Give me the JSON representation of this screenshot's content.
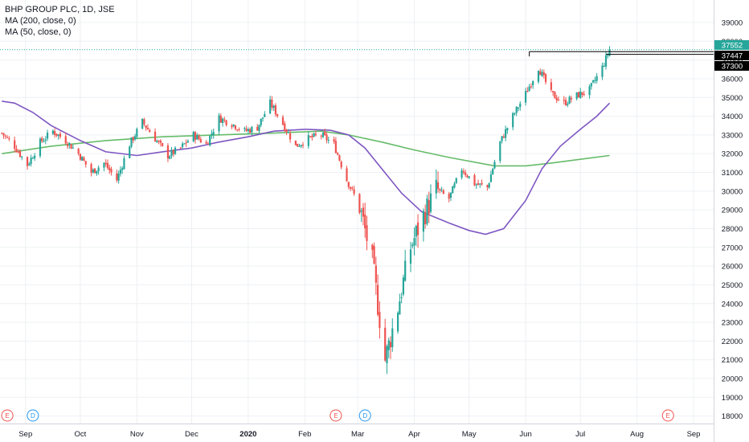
{
  "header": {
    "title": "BHP GROUP PLC, 1D, JSE",
    "indicators": [
      "MA (200, close, 0)",
      "MA (50, close, 0)"
    ]
  },
  "colors": {
    "up": "#26a69a",
    "down": "#ef5350",
    "ma200": "#66bb6a",
    "ma50": "#7e57c2",
    "grid": "#eef0f3",
    "last_price_bg": "#26a69a",
    "label_bg": "#000000",
    "earnings": "#ef5350",
    "dividend": "#2196f3"
  },
  "price_labels": [
    {
      "name": "last-price",
      "text": "37552",
      "value": 37552
    },
    {
      "name": "level-high",
      "text": "37447",
      "value": 37447
    },
    {
      "name": "level-low",
      "text": "37300",
      "value": 37300
    }
  ],
  "events": [
    {
      "type": "earnings",
      "letter": "E",
      "date": "2019-08-22"
    },
    {
      "type": "dividend",
      "letter": "D",
      "date": "2019-09-05"
    },
    {
      "type": "earnings",
      "letter": "E",
      "date": "2020-02-18"
    },
    {
      "type": "dividend",
      "letter": "D",
      "date": "2020-03-05"
    },
    {
      "type": "earnings",
      "letter": "E",
      "date": "2020-08-18"
    }
  ],
  "chart_data": {
    "type": "candlestick",
    "title": "BHP GROUP PLC, 1D, JSE",
    "xlabel": "",
    "ylabel": "",
    "ylim": [
      17600,
      39600
    ],
    "xlim": [
      "2019-08-18",
      "2020-09-12"
    ],
    "y_ticks": [
      18000,
      19000,
      20000,
      21000,
      22000,
      23000,
      24000,
      25000,
      26000,
      27000,
      28000,
      29000,
      30000,
      31000,
      32000,
      33000,
      34000,
      35000,
      36000,
      37000,
      38000,
      39000
    ],
    "x_ticks": [
      {
        "label": "Sep",
        "date": "2019-09-01"
      },
      {
        "label": "Oct",
        "date": "2019-10-01"
      },
      {
        "label": "Nov",
        "date": "2019-11-01"
      },
      {
        "label": "Dec",
        "date": "2019-12-01"
      },
      {
        "label": "2020",
        "date": "2020-01-01",
        "bold": true
      },
      {
        "label": "Feb",
        "date": "2020-02-01"
      },
      {
        "label": "Mar",
        "date": "2020-03-01"
      },
      {
        "label": "Apr",
        "date": "2020-04-01"
      },
      {
        "label": "May",
        "date": "2020-05-01"
      },
      {
        "label": "Jun",
        "date": "2020-06-01"
      },
      {
        "label": "Jul",
        "date": "2020-07-01"
      },
      {
        "label": "Aug",
        "date": "2020-08-01"
      },
      {
        "label": "Sep",
        "date": "2020-09-01"
      }
    ],
    "horizontal_levels": [
      {
        "value": 37447,
        "from": "2020-06-03",
        "to": "2020-07-18"
      },
      {
        "value": 37300,
        "from": "2020-07-15",
        "to": "2020-07-18"
      }
    ],
    "close_series": [
      [
        "2019-08-19",
        33100
      ],
      [
        "2019-08-26",
        32400
      ],
      [
        "2019-09-02",
        31400
      ],
      [
        "2019-09-09",
        32600
      ],
      [
        "2019-09-16",
        33200
      ],
      [
        "2019-09-23",
        32700
      ],
      [
        "2019-09-30",
        32000
      ],
      [
        "2019-10-07",
        31000
      ],
      [
        "2019-10-14",
        31500
      ],
      [
        "2019-10-21",
        30600
      ],
      [
        "2019-10-28",
        32500
      ],
      [
        "2019-11-04",
        33700
      ],
      [
        "2019-11-11",
        32800
      ],
      [
        "2019-11-18",
        31900
      ],
      [
        "2019-11-25",
        32300
      ],
      [
        "2019-12-02",
        33000
      ],
      [
        "2019-12-09",
        32500
      ],
      [
        "2019-12-16",
        33900
      ],
      [
        "2019-12-23",
        33600
      ],
      [
        "2019-12-30",
        33200
      ],
      [
        "2020-01-06",
        33400
      ],
      [
        "2020-01-13",
        34700
      ],
      [
        "2020-01-20",
        33600
      ],
      [
        "2020-01-27",
        32400
      ],
      [
        "2020-02-03",
        32800
      ],
      [
        "2020-02-10",
        33000
      ],
      [
        "2020-02-17",
        32500
      ],
      [
        "2020-02-24",
        30600
      ],
      [
        "2020-03-02",
        29200
      ],
      [
        "2020-03-09",
        26200
      ],
      [
        "2020-03-16",
        21000
      ],
      [
        "2020-03-23",
        23800
      ],
      [
        "2020-03-30",
        27000
      ],
      [
        "2020-04-06",
        28700
      ],
      [
        "2020-04-13",
        30100
      ],
      [
        "2020-04-20",
        29600
      ],
      [
        "2020-04-27",
        31200
      ],
      [
        "2020-05-04",
        30400
      ],
      [
        "2020-05-11",
        30200
      ],
      [
        "2020-05-18",
        32600
      ],
      [
        "2020-05-25",
        34000
      ],
      [
        "2020-06-01",
        35200
      ],
      [
        "2020-06-08",
        36600
      ],
      [
        "2020-06-15",
        35200
      ],
      [
        "2020-06-22",
        34700
      ],
      [
        "2020-06-29",
        35100
      ],
      [
        "2020-07-06",
        35400
      ],
      [
        "2020-07-13",
        36600
      ],
      [
        "2020-07-17",
        37552
      ]
    ],
    "series": [
      {
        "name": "MA (200, close, 0)",
        "points": [
          [
            "2019-08-19",
            32000
          ],
          [
            "2019-09-15",
            32400
          ],
          [
            "2019-10-15",
            32700
          ],
          [
            "2019-11-15",
            32900
          ],
          [
            "2019-12-15",
            33000
          ],
          [
            "2020-01-15",
            33100
          ],
          [
            "2020-02-10",
            33200
          ],
          [
            "2020-02-25",
            33000
          ],
          [
            "2020-03-15",
            32600
          ],
          [
            "2020-04-01",
            32200
          ],
          [
            "2020-04-20",
            31800
          ],
          [
            "2020-05-15",
            31350
          ],
          [
            "2020-06-01",
            31350
          ],
          [
            "2020-06-15",
            31500
          ],
          [
            "2020-07-01",
            31700
          ],
          [
            "2020-07-17",
            31900
          ]
        ]
      },
      {
        "name": "MA (50, close, 0)",
        "points": [
          [
            "2019-08-19",
            34800
          ],
          [
            "2019-08-26",
            34700
          ],
          [
            "2019-09-05",
            34200
          ],
          [
            "2019-09-15",
            33500
          ],
          [
            "2019-10-01",
            32700
          ],
          [
            "2019-10-15",
            32100
          ],
          [
            "2019-11-01",
            31900
          ],
          [
            "2019-11-15",
            32100
          ],
          [
            "2019-12-01",
            32300
          ],
          [
            "2019-12-15",
            32600
          ],
          [
            "2020-01-01",
            32900
          ],
          [
            "2020-01-15",
            33200
          ],
          [
            "2020-02-01",
            33300
          ],
          [
            "2020-02-15",
            33250
          ],
          [
            "2020-02-25",
            33000
          ],
          [
            "2020-03-05",
            32300
          ],
          [
            "2020-03-15",
            31100
          ],
          [
            "2020-03-25",
            29900
          ],
          [
            "2020-04-05",
            28900
          ],
          [
            "2020-04-20",
            28300
          ],
          [
            "2020-05-01",
            27900
          ],
          [
            "2020-05-10",
            27700
          ],
          [
            "2020-05-20",
            28000
          ],
          [
            "2020-06-01",
            29500
          ],
          [
            "2020-06-10",
            31200
          ],
          [
            "2020-06-20",
            32400
          ],
          [
            "2020-07-01",
            33300
          ],
          [
            "2020-07-10",
            34000
          ],
          [
            "2020-07-17",
            34700
          ]
        ]
      }
    ],
    "last_price": 37552,
    "grid": true,
    "legend": "top-left"
  }
}
